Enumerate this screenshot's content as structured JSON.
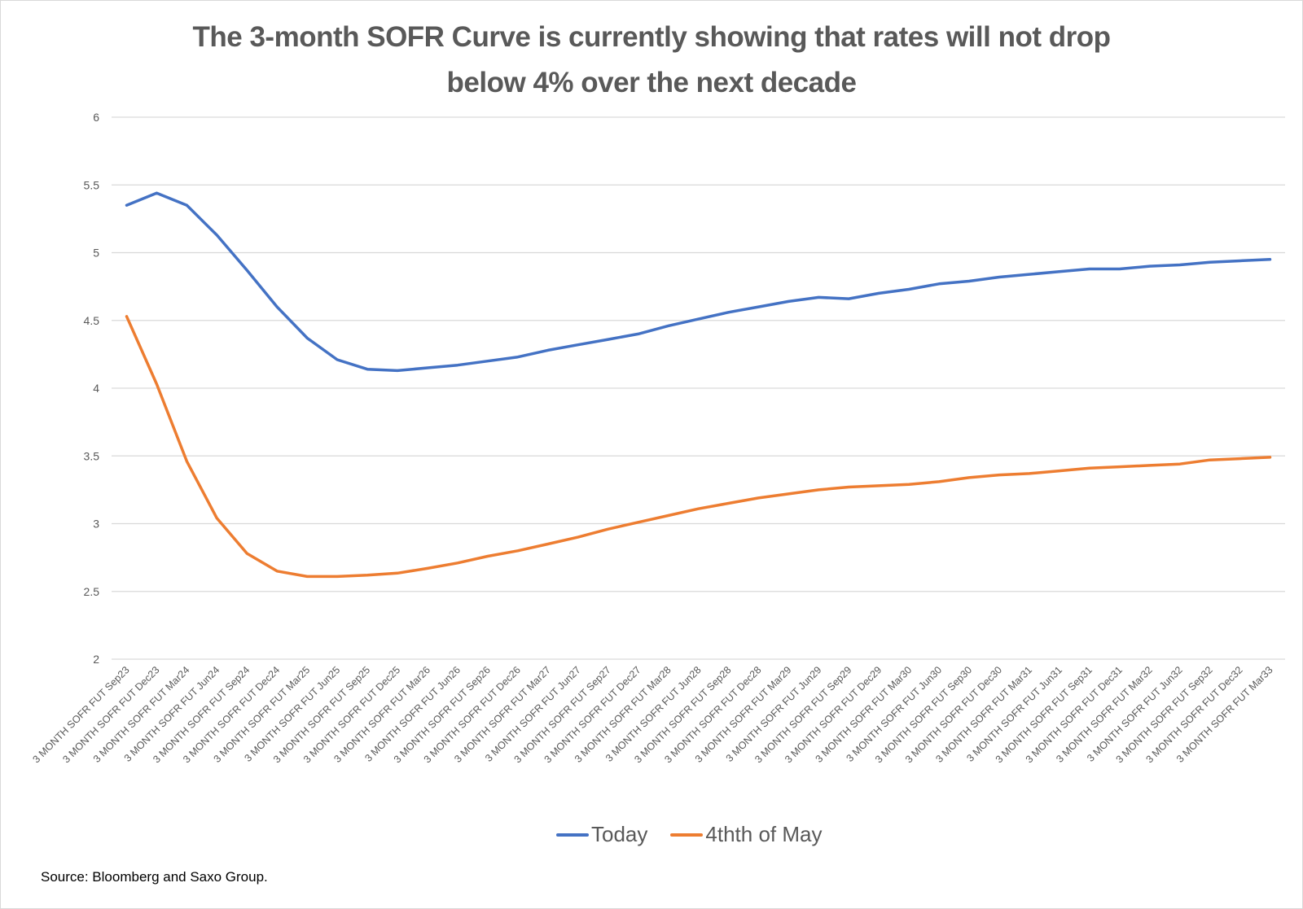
{
  "title": {
    "line1": "The 3-month SOFR Curve is currently showing that rates will not drop",
    "line2": "below 4% over the next decade"
  },
  "source": "Source: Bloomberg and Saxo Group.",
  "colors": {
    "today": "#4472C4",
    "may": "#ED7D31",
    "grid": "#D9D9D9",
    "text": "#595959"
  },
  "chart_data": {
    "type": "line",
    "title": "The 3-month SOFR Curve is currently showing that rates will not drop below 4% over the next decade",
    "xlabel": "",
    "ylabel": "",
    "ylim": [
      2,
      6
    ],
    "yticks": [
      "2",
      "2.5",
      "3",
      "3.5",
      "4",
      "4.5",
      "5",
      "5.5",
      "6"
    ],
    "grid": true,
    "legend_position": "bottom",
    "categories": [
      "3 MONTH SOFR FUT  Sep23",
      "3 MONTH SOFR FUT  Dec23",
      "3 MONTH SOFR FUT  Mar24",
      "3 MONTH SOFR FUT  Jun24",
      "3 MONTH SOFR FUT  Sep24",
      "3 MONTH SOFR FUT  Dec24",
      "3 MONTH SOFR FUT  Mar25",
      "3 MONTH SOFR FUT  Jun25",
      "3 MONTH SOFR FUT  Sep25",
      "3 MONTH SOFR FUT  Dec25",
      "3 MONTH SOFR FUT  Mar26",
      "3 MONTH SOFR FUT  Jun26",
      "3 MONTH SOFR FUT  Sep26",
      "3 MONTH SOFR FUT  Dec26",
      "3 MONTH SOFR FUT  Mar27",
      "3 MONTH SOFR FUT  Jun27",
      "3 MONTH SOFR FUT  Sep27",
      "3 MONTH SOFR FUT  Dec27",
      "3 MONTH SOFR FUT  Mar28",
      "3 MONTH SOFR FUT  Jun28",
      "3 MONTH SOFR FUT  Sep28",
      "3 MONTH SOFR FUT  Dec28",
      "3 MONTH SOFR FUT  Mar29",
      "3 MONTH SOFR FUT  Jun29",
      "3 MONTH SOFR FUT  Sep29",
      "3 MONTH SOFR FUT  Dec29",
      "3 MONTH SOFR FUT  Mar30",
      "3 MONTH SOFR FUT  Jun30",
      "3 MONTH SOFR FUT  Sep30",
      "3 MONTH SOFR FUT  Dec30",
      "3 MONTH SOFR FUT  Mar31",
      "3 MONTH SOFR FUT  Jun31",
      "3 MONTH SOFR FUT  Sep31",
      "3 MONTH SOFR FUT  Dec31",
      "3 MONTH SOFR FUT  Mar32",
      "3 MONTH SOFR FUT  Jun32",
      "3 MONTH SOFR FUT  Sep32",
      "3 MONTH SOFR FUT  Dec32",
      "3 MONTH SOFR FUT  Mar33"
    ],
    "series": [
      {
        "name": "Today",
        "color": "#4472C4",
        "values": [
          5.35,
          5.44,
          5.35,
          5.13,
          4.87,
          4.6,
          4.37,
          4.21,
          4.14,
          4.13,
          4.15,
          4.17,
          4.2,
          4.23,
          4.28,
          4.32,
          4.36,
          4.4,
          4.46,
          4.51,
          4.56,
          4.6,
          4.64,
          4.67,
          4.66,
          4.7,
          4.73,
          4.77,
          4.79,
          4.82,
          4.84,
          4.86,
          4.88,
          4.88,
          4.9,
          4.91,
          4.93,
          4.94,
          4.95
        ]
      },
      {
        "name": "4thth of May",
        "color": "#ED7D31",
        "values": [
          4.53,
          4.03,
          3.46,
          3.04,
          2.78,
          2.65,
          2.61,
          2.61,
          2.62,
          2.635,
          2.67,
          2.71,
          2.76,
          2.8,
          2.85,
          2.9,
          2.96,
          3.01,
          3.06,
          3.11,
          3.15,
          3.19,
          3.22,
          3.25,
          3.27,
          3.28,
          3.29,
          3.31,
          3.34,
          3.36,
          3.37,
          3.39,
          3.41,
          3.42,
          3.43,
          3.44,
          3.47,
          3.48,
          3.49
        ]
      }
    ]
  }
}
